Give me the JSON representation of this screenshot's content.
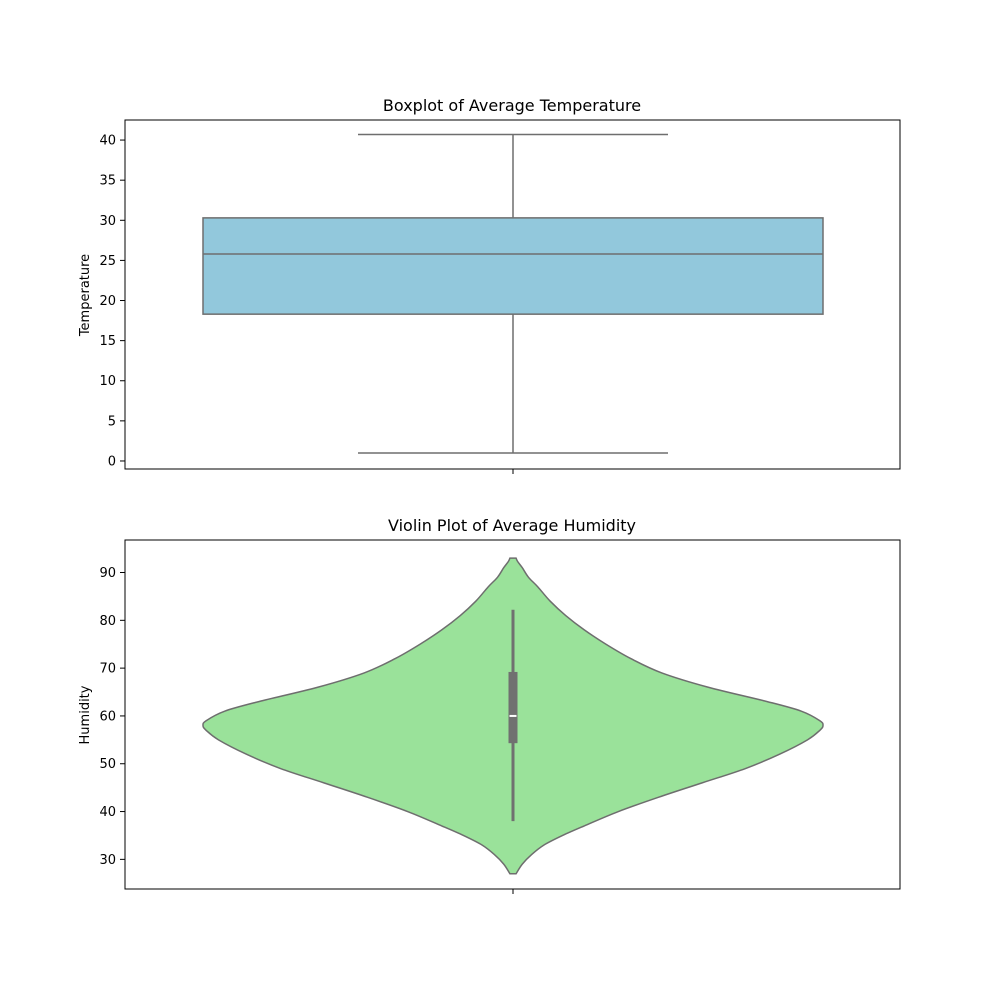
{
  "chart_data": [
    {
      "type": "box",
      "title": "Boxplot of Average Temperature",
      "xlabel": "",
      "ylabel": "Temperature",
      "ylim": [
        -1,
        42.5
      ],
      "yticks": [
        0,
        5,
        10,
        15,
        20,
        25,
        30,
        35,
        40
      ],
      "box": {
        "whisker_low": 1.0,
        "q1": 18.3,
        "median": 25.8,
        "q3": 30.3,
        "whisker_high": 40.7
      },
      "colors": {
        "fill": "#92c8dc",
        "line": "#6e6e6e"
      }
    },
    {
      "type": "violin",
      "title": "Violin Plot of Average Humidity",
      "xlabel": "",
      "ylabel": "Humidity",
      "ylim": [
        23.8,
        96.8
      ],
      "yticks": [
        30,
        40,
        50,
        60,
        70,
        80,
        90
      ],
      "inner_box": {
        "whisker_low": 38,
        "q1": 54.3,
        "median": 60,
        "q3": 69.2,
        "whisker_high": 82.2
      },
      "density": {
        "y": [
          27,
          29,
          31,
          33,
          35,
          37,
          40,
          43,
          46,
          49,
          52,
          55,
          57,
          58,
          59,
          61,
          63,
          66,
          69,
          72,
          75,
          78,
          81,
          84,
          87,
          89,
          91,
          92.3,
          93
        ],
        "half_width": [
          0.01,
          0.03,
          0.06,
          0.1,
          0.16,
          0.23,
          0.34,
          0.47,
          0.61,
          0.75,
          0.86,
          0.95,
          0.99,
          1.0,
          0.99,
          0.93,
          0.82,
          0.63,
          0.48,
          0.38,
          0.3,
          0.23,
          0.17,
          0.12,
          0.08,
          0.05,
          0.03,
          0.015,
          0.01
        ]
      },
      "colors": {
        "fill": "#9ae29a",
        "line": "#6e6e6e",
        "inner": "#707070",
        "median": "#ffffff"
      }
    }
  ]
}
